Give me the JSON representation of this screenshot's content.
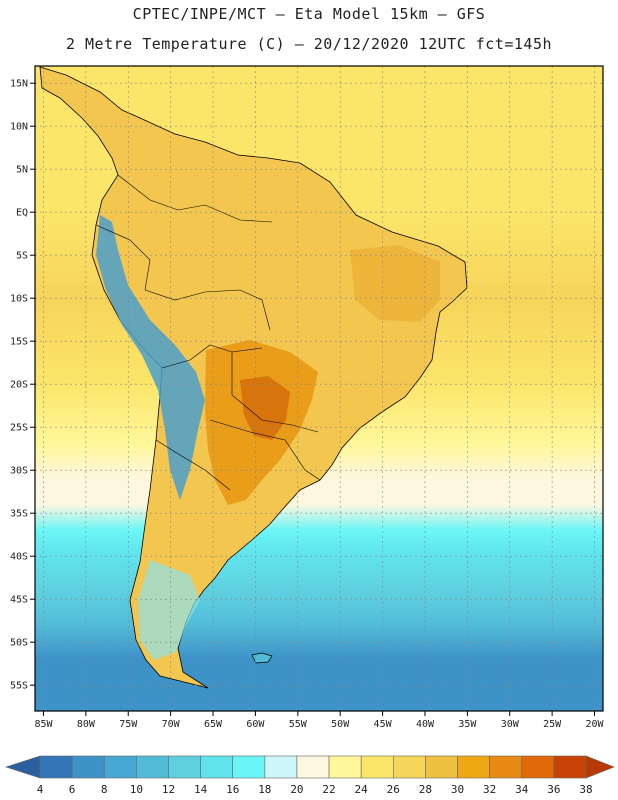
{
  "header": {
    "line1": "CPTEC/INPE/MCT –  Eta Model 15km – GFS",
    "line2": "2 Metre Temperature (C) – 20/12/2020 12UTC fct=145h"
  },
  "chart_data": {
    "type": "heatmap",
    "title": "2 Metre Temperature (C) – 20/12/2020 12UTC fct=145h",
    "source": "CPTEC/INPE/MCT –  Eta Model 15km – GFS",
    "x_range": [
      -86,
      -19
    ],
    "y_range": [
      -58,
      17
    ],
    "lon_ticks": [
      {
        "v": -85,
        "t": "85W"
      },
      {
        "v": -80,
        "t": "80W"
      },
      {
        "v": -75,
        "t": "75W"
      },
      {
        "v": -70,
        "t": "70W"
      },
      {
        "v": -65,
        "t": "65W"
      },
      {
        "v": -60,
        "t": "60W"
      },
      {
        "v": -55,
        "t": "55W"
      },
      {
        "v": -50,
        "t": "50W"
      },
      {
        "v": -45,
        "t": "45W"
      },
      {
        "v": -40,
        "t": "40W"
      },
      {
        "v": -35,
        "t": "35W"
      },
      {
        "v": -30,
        "t": "30W"
      },
      {
        "v": -25,
        "t": "25W"
      },
      {
        "v": -20,
        "t": "20W"
      }
    ],
    "lat_ticks": [
      {
        "v": 15,
        "t": "15N"
      },
      {
        "v": 10,
        "t": "10N"
      },
      {
        "v": 5,
        "t": "5N"
      },
      {
        "v": 0,
        "t": "EQ"
      },
      {
        "v": -5,
        "t": "5S"
      },
      {
        "v": -10,
        "t": "10S"
      },
      {
        "v": -15,
        "t": "15S"
      },
      {
        "v": -20,
        "t": "20S"
      },
      {
        "v": -25,
        "t": "25S"
      },
      {
        "v": -30,
        "t": "30S"
      },
      {
        "v": -35,
        "t": "35S"
      },
      {
        "v": -40,
        "t": "40S"
      },
      {
        "v": -45,
        "t": "45S"
      },
      {
        "v": -50,
        "t": "50S"
      },
      {
        "v": -55,
        "t": "55S"
      }
    ],
    "colorbar": {
      "labels": [
        "4",
        "6",
        "8",
        "10",
        "12",
        "14",
        "16",
        "18",
        "20",
        "22",
        "24",
        "26",
        "28",
        "30",
        "32",
        "34",
        "36",
        "38"
      ],
      "colors": [
        "#2a5fa0",
        "#3377b8",
        "#3d92c8",
        "#47a8d4",
        "#52bcd8",
        "#5fd0e0",
        "#5fe3ec",
        "#6af6f6",
        "#cdf6f8",
        "#fdf7e0",
        "#fff79a",
        "#fbe66a",
        "#f7d45a",
        "#f0c040",
        "#f0a812",
        "#e88a14",
        "#e06a08",
        "#c84406",
        "#b83806"
      ]
    },
    "gradient_stops": [
      {
        "lat": 17,
        "t": 24
      },
      {
        "lat": 10,
        "t": 25
      },
      {
        "lat": 0,
        "t": 25
      },
      {
        "lat": -10,
        "t": 26
      },
      {
        "lat": -20,
        "t": 25
      },
      {
        "lat": -27,
        "t": 23
      },
      {
        "lat": -31,
        "t": 21
      },
      {
        "lat": -34,
        "t": 20
      },
      {
        "lat": -37,
        "t": 17
      },
      {
        "lat": -40,
        "t": 14
      },
      {
        "lat": -44,
        "t": 12
      },
      {
        "lat": -48,
        "t": 10
      },
      {
        "lat": -52,
        "t": 7
      },
      {
        "lat": -58,
        "t": 6
      }
    ]
  }
}
